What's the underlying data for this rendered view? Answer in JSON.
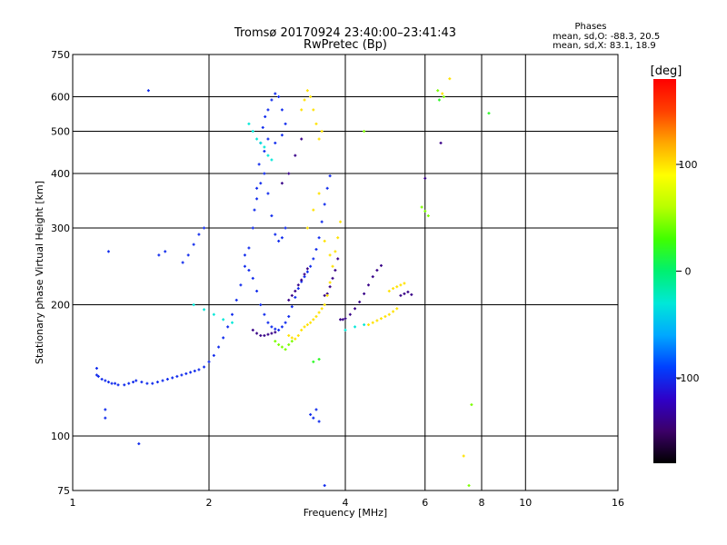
{
  "chart_data": {
    "type": "scatter",
    "title": "Tromsø 20170924 23:40:00–23:41:43",
    "subtitle": "RwPretec (Bp)",
    "xlabel": "Frequency [MHz]",
    "ylabel": "Stationary phase Virtual Height [km]",
    "x_scale": "log",
    "y_scale": "log",
    "xlim": [
      1,
      16
    ],
    "ylim": [
      75,
      750
    ],
    "x_ticks": [
      1,
      2,
      4,
      6,
      8,
      10,
      16
    ],
    "y_ticks": [
      75,
      100,
      200,
      300,
      400,
      500,
      600,
      750
    ],
    "x_grid": [
      2,
      4,
      6,
      8,
      10
    ],
    "y_grid": [
      100,
      200,
      300,
      400,
      500,
      600
    ],
    "grid": true,
    "stats": {
      "heading": "Phases",
      "line1": "mean, sd,O: -88.3, 20.5",
      "line2": "mean, sd,X:  83.1, 18.9"
    },
    "colorbar": {
      "label": "[deg]",
      "range": [
        -180,
        180
      ],
      "ticks": [
        100,
        0,
        -100
      ],
      "tick_labels": [
        "100",
        "0",
        "-100"
      ],
      "colors": [
        "#000000",
        "#3c0068",
        "#2f00c8",
        "#0040ff",
        "#00a8ff",
        "#00e8d8",
        "#00f070",
        "#40ff00",
        "#b8ff00",
        "#ffff00",
        "#ffa800",
        "#ff4000",
        "#ff0000"
      ]
    },
    "series": [
      {
        "phase": -100,
        "color_hint": "blue",
        "points": [
          [
            1.13,
            143
          ],
          [
            1.13,
            138
          ],
          [
            1.14,
            137
          ],
          [
            1.16,
            135
          ],
          [
            1.18,
            134
          ],
          [
            1.2,
            133
          ],
          [
            1.22,
            132
          ],
          [
            1.24,
            132
          ],
          [
            1.26,
            131
          ],
          [
            1.3,
            131
          ],
          [
            1.33,
            132
          ],
          [
            1.36,
            133
          ],
          [
            1.38,
            134
          ],
          [
            1.42,
            133
          ],
          [
            1.46,
            132
          ],
          [
            1.5,
            132
          ],
          [
            1.54,
            133
          ],
          [
            1.58,
            134
          ],
          [
            1.62,
            135
          ],
          [
            1.66,
            136
          ],
          [
            1.7,
            137
          ],
          [
            1.74,
            138
          ],
          [
            1.78,
            139
          ],
          [
            1.82,
            140
          ],
          [
            1.86,
            141
          ],
          [
            1.9,
            142
          ],
          [
            1.95,
            144
          ],
          [
            2.0,
            148
          ],
          [
            2.05,
            153
          ],
          [
            2.1,
            160
          ],
          [
            2.15,
            168
          ],
          [
            2.2,
            178
          ],
          [
            2.25,
            190
          ],
          [
            2.3,
            205
          ],
          [
            2.35,
            222
          ],
          [
            2.4,
            245
          ],
          [
            2.45,
            270
          ],
          [
            2.5,
            300
          ],
          [
            2.52,
            330
          ],
          [
            2.55,
            370
          ],
          [
            2.58,
            420
          ],
          [
            2.6,
            470
          ],
          [
            2.63,
            510
          ],
          [
            2.66,
            540
          ],
          [
            2.7,
            560
          ],
          [
            2.75,
            590
          ],
          [
            2.8,
            610
          ],
          [
            2.85,
            600
          ],
          [
            2.9,
            560
          ],
          [
            2.95,
            520
          ],
          [
            2.65,
            450
          ],
          [
            2.7,
            480
          ],
          [
            2.8,
            470
          ],
          [
            2.9,
            490
          ],
          [
            2.55,
            350
          ],
          [
            2.6,
            380
          ],
          [
            2.65,
            400
          ],
          [
            2.7,
            360
          ],
          [
            2.75,
            320
          ],
          [
            2.8,
            290
          ],
          [
            2.85,
            280
          ],
          [
            2.9,
            285
          ],
          [
            2.95,
            300
          ],
          [
            2.4,
            260
          ],
          [
            2.45,
            240
          ],
          [
            2.5,
            230
          ],
          [
            2.55,
            215
          ],
          [
            2.6,
            200
          ],
          [
            2.65,
            190
          ],
          [
            2.7,
            182
          ],
          [
            2.75,
            178
          ],
          [
            2.8,
            176
          ],
          [
            2.85,
            175
          ],
          [
            2.9,
            178
          ],
          [
            2.95,
            182
          ],
          [
            3.0,
            188
          ],
          [
            3.05,
            198
          ],
          [
            3.1,
            208
          ],
          [
            3.15,
            218
          ],
          [
            3.2,
            226
          ],
          [
            3.25,
            232
          ],
          [
            3.3,
            238
          ],
          [
            3.35,
            245
          ],
          [
            3.4,
            255
          ],
          [
            3.45,
            268
          ],
          [
            3.5,
            285
          ],
          [
            3.55,
            310
          ],
          [
            3.6,
            340
          ],
          [
            3.65,
            370
          ],
          [
            3.7,
            395
          ],
          [
            1.75,
            250
          ],
          [
            1.8,
            260
          ],
          [
            1.85,
            275
          ],
          [
            1.9,
            290
          ],
          [
            1.95,
            300
          ],
          [
            1.6,
            265
          ],
          [
            1.55,
            260
          ],
          [
            1.2,
            265
          ],
          [
            1.18,
            115
          ],
          [
            1.18,
            110
          ],
          [
            1.4,
            96
          ],
          [
            1.47,
            620
          ],
          [
            3.35,
            112
          ],
          [
            3.4,
            110
          ],
          [
            3.45,
            115
          ],
          [
            3.5,
            108
          ],
          [
            3.6,
            77
          ]
        ]
      },
      {
        "phase": -140,
        "color_hint": "violet",
        "points": [
          [
            2.5,
            175
          ],
          [
            2.55,
            172
          ],
          [
            2.6,
            170
          ],
          [
            2.65,
            170
          ],
          [
            2.7,
            171
          ],
          [
            2.75,
            172
          ],
          [
            2.8,
            173
          ],
          [
            3.0,
            205
          ],
          [
            3.05,
            210
          ],
          [
            3.1,
            215
          ],
          [
            3.15,
            222
          ],
          [
            3.2,
            228
          ],
          [
            3.25,
            235
          ],
          [
            3.3,
            242
          ],
          [
            3.6,
            210
          ],
          [
            3.65,
            212
          ],
          [
            3.7,
            220
          ],
          [
            3.75,
            230
          ],
          [
            3.8,
            240
          ],
          [
            3.85,
            255
          ],
          [
            3.9,
            185
          ],
          [
            3.95,
            185
          ],
          [
            4.0,
            186
          ],
          [
            4.1,
            190
          ],
          [
            4.2,
            196
          ],
          [
            4.3,
            203
          ],
          [
            4.4,
            212
          ],
          [
            4.5,
            222
          ],
          [
            4.6,
            232
          ],
          [
            4.7,
            240
          ],
          [
            4.8,
            246
          ],
          [
            5.3,
            210
          ],
          [
            5.4,
            212
          ],
          [
            5.5,
            214
          ],
          [
            5.6,
            211
          ],
          [
            6.5,
            470
          ],
          [
            6.0,
            390
          ],
          [
            2.9,
            380
          ],
          [
            3.0,
            400
          ],
          [
            3.1,
            440
          ],
          [
            3.2,
            480
          ]
        ]
      },
      {
        "phase": 100,
        "color_hint": "yellow",
        "points": [
          [
            3.0,
            170
          ],
          [
            3.05,
            168
          ],
          [
            3.1,
            167
          ],
          [
            3.15,
            170
          ],
          [
            3.2,
            175
          ],
          [
            3.25,
            178
          ],
          [
            3.3,
            180
          ],
          [
            3.35,
            182
          ],
          [
            3.4,
            185
          ],
          [
            3.45,
            188
          ],
          [
            3.5,
            192
          ],
          [
            3.55,
            196
          ],
          [
            3.6,
            200
          ],
          [
            3.65,
            210
          ],
          [
            3.7,
            225
          ],
          [
            3.75,
            245
          ],
          [
            3.8,
            265
          ],
          [
            3.85,
            285
          ],
          [
            3.9,
            310
          ],
          [
            3.2,
            560
          ],
          [
            3.25,
            590
          ],
          [
            3.3,
            620
          ],
          [
            3.35,
            600
          ],
          [
            3.4,
            560
          ],
          [
            3.45,
            520
          ],
          [
            3.5,
            480
          ],
          [
            3.55,
            500
          ],
          [
            3.3,
            300
          ],
          [
            3.4,
            330
          ],
          [
            3.5,
            360
          ],
          [
            3.6,
            280
          ],
          [
            3.7,
            260
          ],
          [
            4.5,
            180
          ],
          [
            4.6,
            182
          ],
          [
            4.7,
            184
          ],
          [
            4.8,
            186
          ],
          [
            4.9,
            188
          ],
          [
            5.0,
            190
          ],
          [
            5.1,
            193
          ],
          [
            5.2,
            196
          ],
          [
            5.0,
            215
          ],
          [
            5.1,
            218
          ],
          [
            5.2,
            220
          ],
          [
            5.3,
            222
          ],
          [
            5.4,
            224
          ],
          [
            6.8,
            660
          ],
          [
            6.55,
            610
          ],
          [
            7.3,
            90
          ]
        ]
      },
      {
        "phase": 45,
        "color_hint": "green-yellow",
        "points": [
          [
            2.8,
            165
          ],
          [
            2.85,
            162
          ],
          [
            2.9,
            160
          ],
          [
            2.95,
            158
          ],
          [
            3.0,
            162
          ],
          [
            3.05,
            165
          ],
          [
            5.9,
            335
          ],
          [
            6.0,
            328
          ],
          [
            6.1,
            320
          ],
          [
            6.4,
            620
          ],
          [
            6.6,
            600
          ],
          [
            7.6,
            118
          ],
          [
            7.5,
            77
          ],
          [
            4.4,
            500
          ]
        ]
      },
      {
        "phase": -30,
        "color_hint": "cyan",
        "points": [
          [
            2.45,
            520
          ],
          [
            2.5,
            500
          ],
          [
            2.55,
            480
          ],
          [
            2.6,
            470
          ],
          [
            2.65,
            460
          ],
          [
            2.7,
            440
          ],
          [
            2.75,
            430
          ],
          [
            1.85,
            200
          ],
          [
            1.95,
            195
          ],
          [
            2.05,
            190
          ],
          [
            2.15,
            185
          ],
          [
            2.25,
            182
          ],
          [
            4.0,
            175
          ],
          [
            4.2,
            178
          ],
          [
            4.4,
            180
          ]
        ]
      },
      {
        "phase": 20,
        "color_hint": "green",
        "points": [
          [
            3.5,
            150
          ],
          [
            3.4,
            148
          ],
          [
            6.45,
            590
          ],
          [
            8.3,
            550
          ]
        ]
      }
    ]
  }
}
